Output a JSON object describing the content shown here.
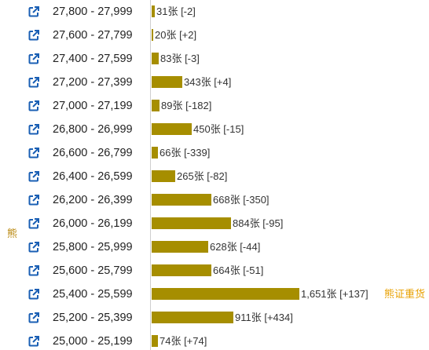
{
  "side_label": "熊",
  "note_label": "熊证重货",
  "bar_color": "#a68e00",
  "icon_color": "#1a5fb4",
  "icon": "external-link-icon",
  "chart_data": {
    "type": "bar",
    "orientation": "horizontal",
    "unit": "张",
    "categories": [
      "27,800 - 27,999",
      "27,600 - 27,799",
      "27,400 - 27,599",
      "27,200 - 27,399",
      "27,000 - 27,199",
      "26,800 - 26,999",
      "26,600 - 26,799",
      "26,400 - 26,599",
      "26,200 - 26,399",
      "26,000 - 26,199",
      "25,800 - 25,999",
      "25,600 - 25,799",
      "25,400 - 25,599",
      "25,200 - 25,399",
      "25,000 - 25,199"
    ],
    "values": [
      31,
      20,
      83,
      343,
      89,
      450,
      66,
      265,
      668,
      884,
      628,
      664,
      1651,
      911,
      74
    ],
    "labels": [
      "31张 [-2]",
      "20张 [+2]",
      "83张 [-3]",
      "343张 [+4]",
      "89张 [-182]",
      "450张 [-15]",
      "66张 [-339]",
      "265张 [-82]",
      "668张 [-350]",
      "884张 [-95]",
      "628张 [-44]",
      "664张 [-51]",
      "1,651张 [+137]",
      "911张 [+434]",
      "74张 [+74]"
    ]
  }
}
